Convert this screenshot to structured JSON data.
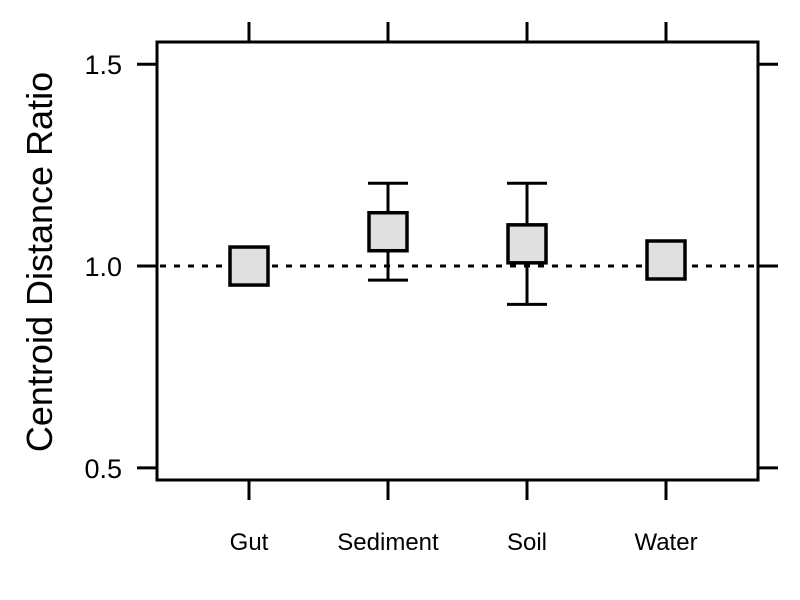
{
  "chart_data": {
    "type": "scatter",
    "categories": [
      "Gut",
      "Sediment",
      "Soil",
      "Water"
    ],
    "series": [
      {
        "values": [
          1.0,
          1.085,
          1.055,
          1.015
        ],
        "error_lower": [
          1.0,
          0.965,
          0.905,
          1.015
        ],
        "error_upper": [
          1.0,
          1.205,
          1.205,
          1.015
        ]
      }
    ],
    "reference_line": 1.0,
    "ylabel": "Centroid Distance Ratio",
    "xlabel": "",
    "ylim": [
      0.47,
      1.555
    ],
    "yticks": [
      0.5,
      1.0,
      1.5
    ],
    "ytick_labels": [
      "0.5",
      "1.0",
      "1.5"
    ],
    "grid": false,
    "marker": "square",
    "marker_fill": "#e0e0e0",
    "line_color": "#000000"
  }
}
